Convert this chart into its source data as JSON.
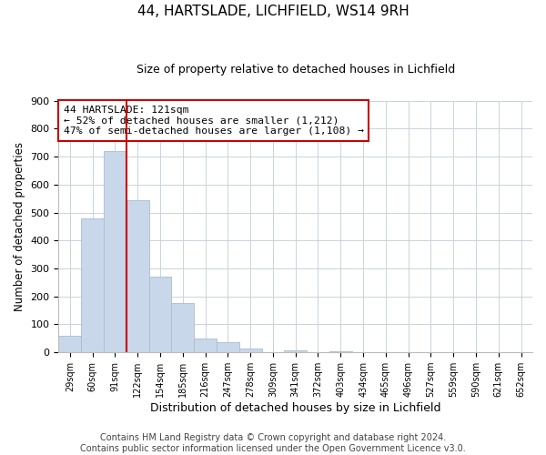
{
  "title": "44, HARTSLADE, LICHFIELD, WS14 9RH",
  "subtitle": "Size of property relative to detached houses in Lichfield",
  "xlabel": "Distribution of detached houses by size in Lichfield",
  "ylabel": "Number of detached properties",
  "bar_labels": [
    "29sqm",
    "60sqm",
    "91sqm",
    "122sqm",
    "154sqm",
    "185sqm",
    "216sqm",
    "247sqm",
    "278sqm",
    "309sqm",
    "341sqm",
    "372sqm",
    "403sqm",
    "434sqm",
    "465sqm",
    "496sqm",
    "527sqm",
    "559sqm",
    "590sqm",
    "621sqm",
    "652sqm"
  ],
  "bar_heights": [
    60,
    480,
    720,
    545,
    270,
    175,
    50,
    35,
    15,
    0,
    8,
    0,
    5,
    0,
    0,
    0,
    0,
    0,
    0,
    0,
    0
  ],
  "bar_color": "#c8d8ea",
  "bar_edge_color": "#aabccc",
  "vline_color": "#cc0000",
  "vline_x_index": 2.5,
  "ylim": [
    0,
    900
  ],
  "yticks": [
    0,
    100,
    200,
    300,
    400,
    500,
    600,
    700,
    800,
    900
  ],
  "annotation_title": "44 HARTSLADE: 121sqm",
  "annotation_line1": "← 52% of detached houses are smaller (1,212)",
  "annotation_line2": "47% of semi-detached houses are larger (1,108) →",
  "annotation_box_color": "#ffffff",
  "annotation_box_edge": "#cc0000",
  "footer_line1": "Contains HM Land Registry data © Crown copyright and database right 2024.",
  "footer_line2": "Contains public sector information licensed under the Open Government Licence v3.0.",
  "title_fontsize": 11,
  "subtitle_fontsize": 9,
  "footer_fontsize": 7,
  "ylabel_fontsize": 8.5,
  "xlabel_fontsize": 9
}
